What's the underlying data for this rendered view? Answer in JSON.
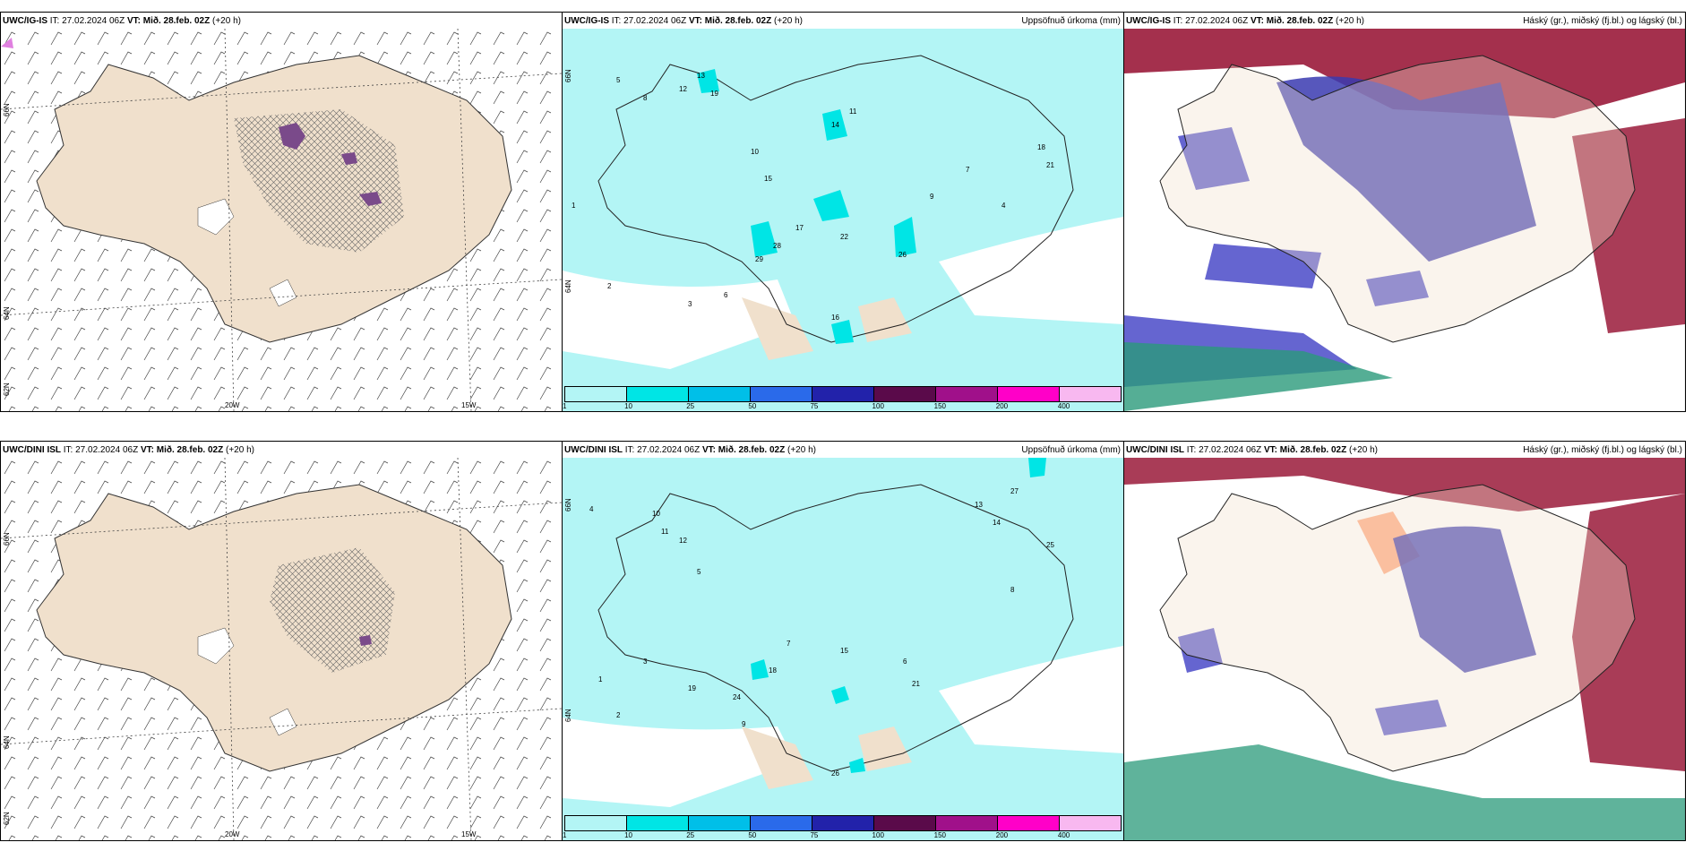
{
  "panels": [
    {
      "model": "UWC/IG-IS",
      "it": "IT: 27.02.2024 06Z",
      "vt": "VT: Mið. 28.feb. 02Z",
      "lead": "(+20 h)",
      "right_title": ""
    },
    {
      "model": "UWC/IG-IS",
      "it": "IT: 27.02.2024 06Z",
      "vt": "VT: Mið. 28.feb. 02Z",
      "lead": "(+20 h)",
      "right_title": "Uppsöfnuð úrkoma (mm)"
    },
    {
      "model": "UWC/IG-IS",
      "it": "IT: 27.02.2024 06Z",
      "vt": "VT: Mið. 28.feb. 02Z",
      "lead": "(+20 h)",
      "right_title": "Háský (gr.), miðský (fj.bl.) og lágský (bl.)"
    },
    {
      "model": "UWC/DINI ISL",
      "it": "IT: 27.02.2024 06Z",
      "vt": "VT: Mið. 28.feb. 02Z",
      "lead": "(+20 h)",
      "right_title": ""
    },
    {
      "model": "UWC/DINI ISL",
      "it": "IT: 27.02.2024 06Z",
      "vt": "VT: Mið. 28.feb. 02Z",
      "lead": "(+20 h)",
      "right_title": "Uppsöfnuð úrkoma (mm)"
    },
    {
      "model": "UWC/DINI ISL",
      "it": "IT: 27.02.2024 06Z",
      "vt": "VT: Mið. 28.feb. 02Z",
      "lead": "(+20 h)",
      "right_title": "Háský (gr.), miðský (fj.bl.) og lágský (bl.)"
    }
  ],
  "axis_labels": {
    "lat_66": "66N",
    "lat_64": "64N",
    "lat_62": "62N",
    "lon_20w": "20W",
    "lon_15w": "15W"
  },
  "legend": {
    "ticks": [
      "1",
      "10",
      "25",
      "50",
      "75",
      "100",
      "150",
      "200",
      "400"
    ],
    "colors": [
      "#b3f5f5",
      "#00e5e5",
      "#00bfe8",
      "#2a6aea",
      "#2222aa",
      "#5a0a4a",
      "#a0108a",
      "#ff00c8",
      "#f8b8f0"
    ]
  },
  "colors": {
    "land": "#f0e0cc",
    "precip_light": "#b3f5f5",
    "precip_mid": "#00e5e5",
    "high_cloud": "#9a1a3a",
    "mid_cloud": "#3a3ab0",
    "low_cloud": "#2a9a7a"
  },
  "precip_values_top": [
    "5",
    "8",
    "12",
    "13",
    "19",
    "14",
    "11",
    "10",
    "15",
    "22",
    "29",
    "28",
    "17",
    "26",
    "16",
    "21",
    "18",
    "9",
    "7",
    "6",
    "4",
    "3",
    "2",
    "1"
  ],
  "precip_values_bottom": [
    "4",
    "10",
    "11",
    "12",
    "13",
    "14",
    "19",
    "15",
    "24",
    "26",
    "18",
    "9",
    "8",
    "7",
    "6",
    "5",
    "3",
    "2",
    "1",
    "21",
    "25",
    "27"
  ]
}
